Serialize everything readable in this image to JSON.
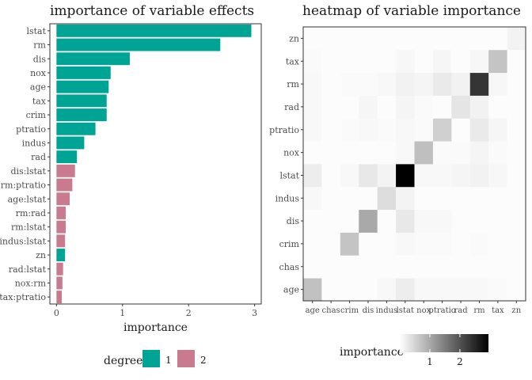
{
  "chart_data": [
    {
      "type": "bar",
      "orientation": "horizontal",
      "title": "importance of variable effects",
      "xlabel": "importance",
      "ylabel": "",
      "xlim": [
        -0.1,
        3.1
      ],
      "xticks": [
        0,
        1,
        2,
        3
      ],
      "grid": false,
      "categories": [
        "lstat",
        "rm",
        "dis",
        "nox",
        "age",
        "tax",
        "crim",
        "ptratio",
        "indus",
        "rad",
        "dis:lstat",
        "rm:ptratio",
        "age:lstat",
        "rm:rad",
        "rm:lstat",
        "indus:lstat",
        "zn",
        "rad:lstat",
        "nox:rm",
        "tax:ptratio"
      ],
      "values": [
        2.95,
        2.48,
        1.11,
        0.82,
        0.79,
        0.76,
        0.76,
        0.59,
        0.42,
        0.31,
        0.28,
        0.24,
        0.2,
        0.14,
        0.14,
        0.13,
        0.13,
        0.1,
        0.09,
        0.08
      ],
      "degree": [
        1,
        1,
        1,
        1,
        1,
        1,
        1,
        1,
        1,
        1,
        2,
        2,
        2,
        2,
        2,
        2,
        1,
        2,
        2,
        2
      ],
      "legend": {
        "title": "degree",
        "placement": "bottom",
        "entries": [
          {
            "label": "1",
            "color": "#00a495"
          },
          {
            "label": "2",
            "color": "#c97a8e"
          }
        ]
      }
    },
    {
      "type": "heatmap",
      "title": "heatmap of variable importance",
      "xlabel": "",
      "ylabel": "",
      "x_categories": [
        "age",
        "chas",
        "crim",
        "dis",
        "indus",
        "lstat",
        "nox",
        "ptratio",
        "rad",
        "rm",
        "tax",
        "zn"
      ],
      "y_categories": [
        "age",
        "chas",
        "crim",
        "dis",
        "indus",
        "lstat",
        "nox",
        "ptratio",
        "rad",
        "rm",
        "tax",
        "zn"
      ],
      "x_tick_labels": [
        "age",
        "chas",
        "crim",
        "dis",
        "indus",
        "lstat",
        "nox",
        "ptratio",
        "rad",
        "rm",
        "tax",
        "zn"
      ],
      "color_range": [
        0,
        2.95
      ],
      "color_scale": [
        "#ffffff",
        "#000000"
      ],
      "values": [
        [
          0.79,
          0,
          0,
          0,
          0.05,
          0.2,
          0.05,
          0.05,
          0.05,
          0.05,
          0.03,
          0
        ],
        [
          0,
          0,
          0,
          0,
          0,
          0,
          0,
          0,
          0,
          0,
          0,
          0
        ],
        [
          0,
          0,
          0.76,
          0,
          0,
          0.05,
          0.03,
          0.03,
          0,
          0.03,
          0,
          0
        ],
        [
          0,
          0,
          0,
          1.11,
          0,
          0.28,
          0.05,
          0.05,
          0,
          0,
          0,
          0
        ],
        [
          0.05,
          0,
          0,
          0,
          0.42,
          0.13,
          0,
          0,
          0,
          0,
          0,
          0
        ],
        [
          0.2,
          0,
          0.05,
          0.28,
          0.13,
          2.95,
          0.05,
          0.05,
          0.1,
          0.14,
          0.07,
          0
        ],
        [
          0,
          0,
          0,
          0,
          0,
          0.05,
          0.82,
          0.03,
          0.03,
          0.09,
          0.03,
          0
        ],
        [
          0.05,
          0,
          0.03,
          0.05,
          0.03,
          0.05,
          0.03,
          0.59,
          0,
          0.24,
          0.08,
          0
        ],
        [
          0.05,
          0,
          0,
          0.08,
          0,
          0.1,
          0.03,
          0,
          0.31,
          0.14,
          0,
          0
        ],
        [
          0.05,
          0,
          0.03,
          0.03,
          0.05,
          0.14,
          0.09,
          0.24,
          0.14,
          2.48,
          0.07,
          0
        ],
        [
          0.03,
          0,
          0,
          0,
          0,
          0.07,
          0,
          0.08,
          0,
          0.07,
          0.76,
          0
        ],
        [
          0,
          0,
          0,
          0,
          0,
          0,
          0,
          0,
          0,
          0,
          0,
          0.13
        ]
      ],
      "legend": {
        "title": "importance",
        "placement": "bottom",
        "ticks": [
          "1",
          "2"
        ]
      }
    }
  ]
}
